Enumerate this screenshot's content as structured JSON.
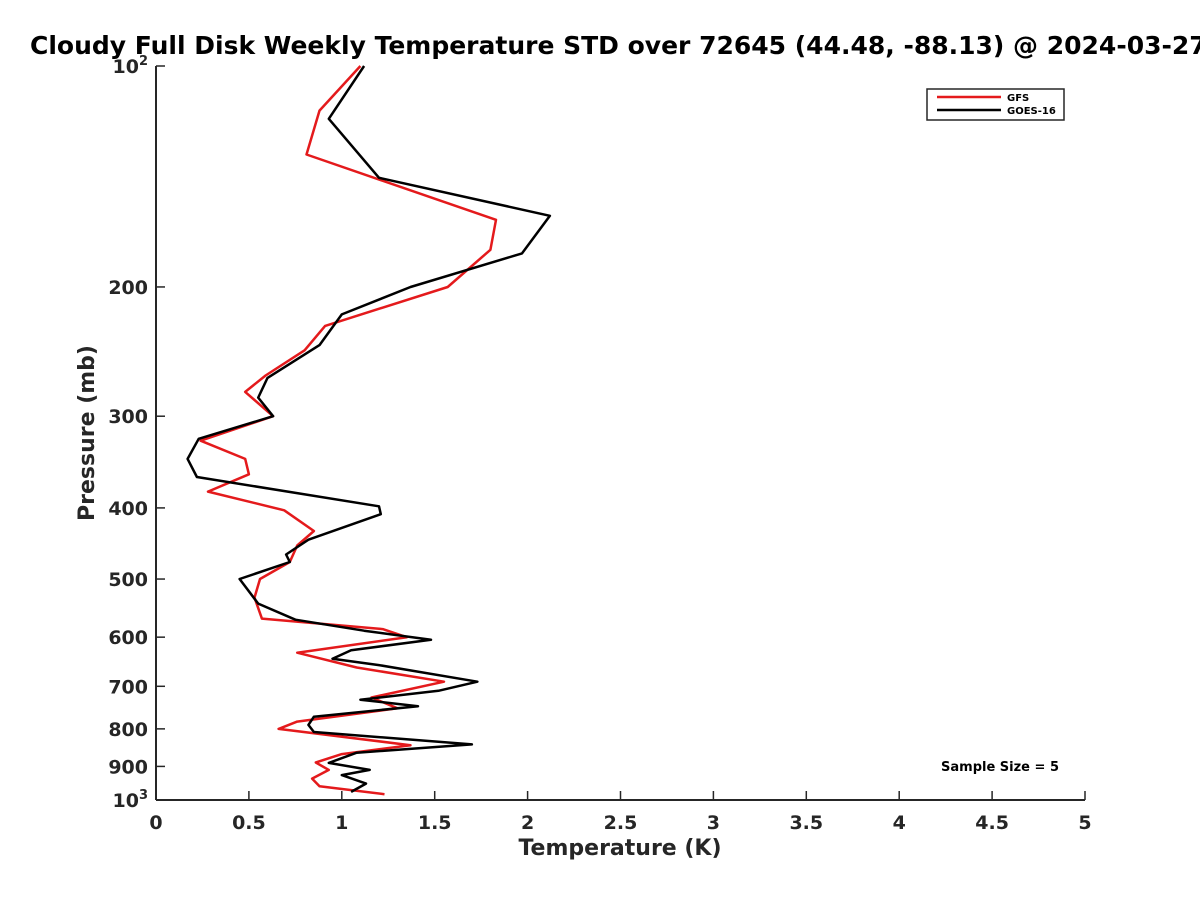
{
  "chart_data": {
    "type": "line",
    "title": "Cloudy Full Disk Weekly Temperature STD over 72645 (44.48, -88.13) @ 2024-03-27",
    "xlabel": "Temperature (K)",
    "ylabel": "Pressure (mb)",
    "xlim": [
      0,
      5
    ],
    "ylim": [
      100,
      1000
    ],
    "yscale": "log",
    "y_reversed": true,
    "x_ticks": [
      0,
      0.5,
      1,
      1.5,
      2,
      2.5,
      3,
      3.5,
      4,
      4.5,
      5
    ],
    "x_tick_labels": [
      "0",
      "0.5",
      "1",
      "1.5",
      "2",
      "2.5",
      "3",
      "3.5",
      "4",
      "4.5",
      "5"
    ],
    "y_ticks": [
      100,
      200,
      300,
      400,
      500,
      600,
      700,
      800,
      900,
      1000
    ],
    "y_tick_labels": [
      "10^2",
      "200",
      "300",
      "400",
      "500",
      "600",
      "700",
      "800",
      "900",
      "10^3"
    ],
    "grid": false,
    "legend_position": "top-right",
    "annotation": "Sample Size = 5",
    "series": [
      {
        "name": "GFS",
        "color": "#e41a1c",
        "points": [
          [
            1.1,
            100
          ],
          [
            0.88,
            115
          ],
          [
            0.81,
            132
          ],
          [
            1.83,
            162
          ],
          [
            1.8,
            178
          ],
          [
            1.57,
            200
          ],
          [
            0.91,
            226
          ],
          [
            0.8,
            244
          ],
          [
            0.59,
            264
          ],
          [
            0.48,
            278
          ],
          [
            0.63,
            300
          ],
          [
            0.24,
            324
          ],
          [
            0.48,
            343
          ],
          [
            0.5,
            360
          ],
          [
            0.28,
            380
          ],
          [
            0.69,
            403
          ],
          [
            0.85,
            430
          ],
          [
            0.76,
            450
          ],
          [
            0.72,
            474
          ],
          [
            0.56,
            500
          ],
          [
            0.53,
            530
          ],
          [
            0.57,
            566
          ],
          [
            1.22,
            585
          ],
          [
            1.35,
            600
          ],
          [
            0.76,
            630
          ],
          [
            1.08,
            660
          ],
          [
            1.55,
            690
          ],
          [
            1.16,
            725
          ],
          [
            1.3,
            750
          ],
          [
            0.76,
            782
          ],
          [
            0.66,
            800
          ],
          [
            1.37,
            842
          ],
          [
            1.0,
            866
          ],
          [
            0.86,
            889
          ],
          [
            0.93,
            910
          ],
          [
            0.84,
            935
          ],
          [
            0.88,
            958
          ],
          [
            1.23,
            982
          ]
        ]
      },
      {
        "name": "GOES-16",
        "color": "#000000",
        "points": [
          [
            1.12,
            100
          ],
          [
            0.93,
            118
          ],
          [
            1.2,
            142
          ],
          [
            2.12,
            160
          ],
          [
            1.97,
            180
          ],
          [
            1.37,
            200
          ],
          [
            1.0,
            218
          ],
          [
            0.88,
            240
          ],
          [
            0.6,
            266
          ],
          [
            0.55,
            283
          ],
          [
            0.63,
            300
          ],
          [
            0.23,
            322
          ],
          [
            0.17,
            343
          ],
          [
            0.22,
            363
          ],
          [
            1.2,
            398
          ],
          [
            1.21,
            408
          ],
          [
            0.82,
            442
          ],
          [
            0.7,
            463
          ],
          [
            0.72,
            474
          ],
          [
            0.45,
            500
          ],
          [
            0.55,
            540
          ],
          [
            0.75,
            568
          ],
          [
            1.12,
            588
          ],
          [
            1.48,
            605
          ],
          [
            1.05,
            625
          ],
          [
            0.95,
            642
          ],
          [
            1.2,
            655
          ],
          [
            1.73,
            690
          ],
          [
            1.52,
            710
          ],
          [
            1.1,
            730
          ],
          [
            1.41,
            745
          ],
          [
            0.85,
            770
          ],
          [
            0.82,
            790
          ],
          [
            0.85,
            808
          ],
          [
            1.7,
            840
          ],
          [
            1.08,
            862
          ],
          [
            0.93,
            890
          ],
          [
            1.15,
            910
          ],
          [
            1.0,
            925
          ],
          [
            1.13,
            950
          ],
          [
            1.05,
            975
          ]
        ]
      }
    ]
  }
}
